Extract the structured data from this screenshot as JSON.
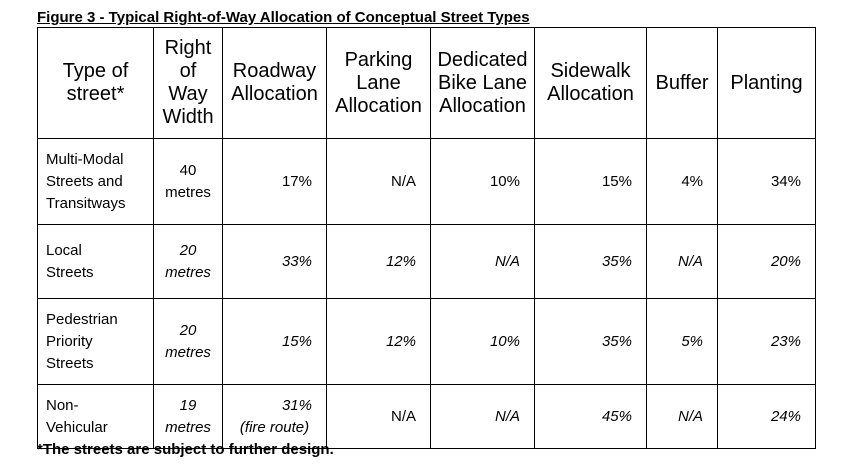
{
  "title": "Figure 3 - Typical Right-of-Way Allocation of Conceptual Street Types",
  "headers": {
    "type": [
      "Type of",
      "street*"
    ],
    "row": [
      "Right",
      "of",
      "Way",
      "Width"
    ],
    "roadway": [
      "Roadway",
      "Allocation"
    ],
    "parking": [
      "Parking",
      "Lane",
      "Allocation"
    ],
    "bike": [
      "Dedicated",
      "Bike Lane",
      "Allocation"
    ],
    "sidewalk": [
      "Sidewalk",
      "Allocation"
    ],
    "buffer": [
      "Buffer"
    ],
    "planting": [
      "Planting"
    ]
  },
  "rows": [
    {
      "type": [
        "Multi-Modal",
        "Streets and",
        "Transitways"
      ],
      "width": [
        "40",
        "metres"
      ],
      "roadway": [
        "17%"
      ],
      "parking": "N/A",
      "bike": "10%",
      "sidewalk": "15%",
      "buffer": "4%",
      "planting": "34%"
    },
    {
      "type": [
        "Local",
        "Streets"
      ],
      "width": [
        "20",
        "metres"
      ],
      "roadway": [
        "33%"
      ],
      "parking": "12%",
      "bike": "N/A",
      "sidewalk": "35%",
      "buffer": "N/A",
      "planting": "20%"
    },
    {
      "type": [
        "Pedestrian",
        "Priority",
        "Streets"
      ],
      "width": [
        "20",
        "metres"
      ],
      "roadway": [
        "15%"
      ],
      "parking": "12%",
      "bike": "10%",
      "sidewalk": "35%",
      "buffer": "5%",
      "planting": "23%"
    },
    {
      "type": [
        "Non-",
        "Vehicular"
      ],
      "width": [
        "19",
        "metres"
      ],
      "roadway": [
        "31%",
        "(fire route)"
      ],
      "parking": "N/A",
      "bike": "N/A",
      "sidewalk": "45%",
      "buffer": "N/A",
      "planting": "24%"
    }
  ],
  "footnote": "*The streets are subject to further design."
}
